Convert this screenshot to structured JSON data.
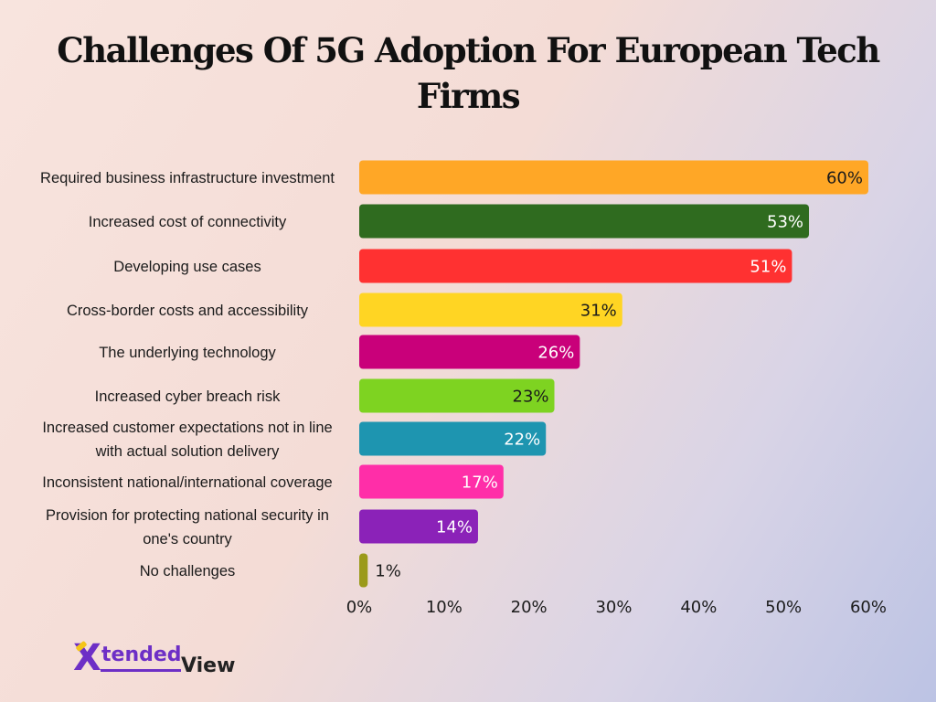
{
  "chart_data": {
    "type": "bar",
    "orientation": "horizontal",
    "title": "Challenges Of 5G Adoption For European Tech Firms",
    "categories": [
      [
        "Required business infrastructure investment"
      ],
      [
        "Increased cost of connectivity"
      ],
      [
        "Developing use cases"
      ],
      [
        "Cross-border costs and accessibility"
      ],
      [
        "The underlying technology"
      ],
      [
        "Increased cyber breach risk"
      ],
      [
        "Increased customer expectations not in line",
        "with actual solution delivery"
      ],
      [
        "Inconsistent national/international coverage"
      ],
      [
        "Provision for protecting national security in",
        "one's country"
      ],
      [
        "No challenges"
      ]
    ],
    "values": [
      60,
      53,
      51,
      31,
      26,
      23,
      22,
      17,
      14,
      1
    ],
    "value_labels": [
      "60%",
      "53%",
      "51%",
      "31%",
      "26%",
      "23%",
      "22%",
      "17%",
      "14%",
      "1%"
    ],
    "colors": [
      "#ffa726",
      "#2f6b1f",
      "#ff3131",
      "#ffd523",
      "#c9007a",
      "#7ed321",
      "#1e95b0",
      "#ff2ea8",
      "#8b22b8",
      "#9b9a1a"
    ],
    "label_colors": [
      "#1b1b1b",
      "#ffffff",
      "#ffffff",
      "#1b1b1b",
      "#ffffff",
      "#1b1b1b",
      "#ffffff",
      "#ffffff",
      "#ffffff",
      "#1b1b1b"
    ],
    "xlim": [
      0,
      60
    ],
    "xticks": [
      0,
      10,
      20,
      30,
      40,
      50,
      60
    ],
    "xtick_labels": [
      "0%",
      "10%",
      "20%",
      "30%",
      "40%",
      "50%",
      "60%"
    ],
    "grid": false,
    "legend": "none"
  },
  "logo": {
    "part1": "tended",
    "part2": "View",
    "mark": "X"
  }
}
